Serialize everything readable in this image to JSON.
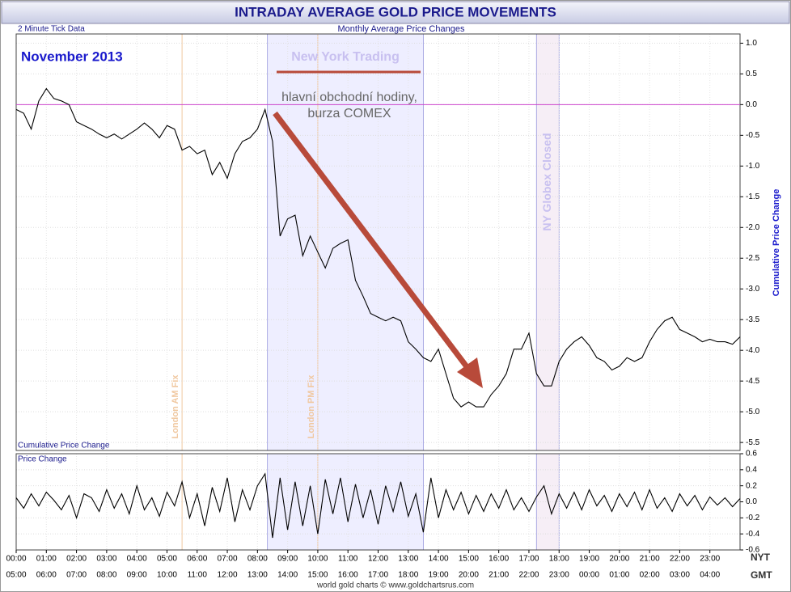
{
  "header": {
    "title": "INTRADAY AVERAGE GOLD PRICE MOVEMENTS",
    "left_note": "2 Minute Tick Data",
    "center_note": "Monthly Average Price Changes",
    "credit": "world gold charts © www.goldchartsrus.com"
  },
  "chart_data": [
    {
      "type": "line",
      "month_label": "November 2013",
      "panel_label": "Cumulative Price Change",
      "y_label": "Cumulative Price Change",
      "color": "#000000",
      "grid": true,
      "reference_line": 0,
      "reference_color": "#cc44cc",
      "annotations": [
        "hlavní obchodní hodiny,",
        "burza COMEX"
      ],
      "regions": [
        {
          "label": "New York Trading",
          "start": 8.33,
          "end": 13.5,
          "color": "#eeeeff"
        },
        {
          "label": "NY Globex Closed",
          "start": 17.25,
          "end": 18,
          "color": "#f6eef6"
        }
      ],
      "vlines": [
        {
          "label": "London AM Fix",
          "x": 5.5,
          "color": "#f0c8a0"
        },
        {
          "label": "London PM Fix",
          "x": 10,
          "color": "#f0c8a0"
        }
      ],
      "xlim": [
        0,
        24
      ],
      "ylim": [
        -5.63,
        1.15
      ],
      "yticks": [
        {
          "value": 1,
          "label": "1.0"
        },
        0.5,
        {
          "value": 0,
          "label": "0.0"
        },
        -0.5,
        {
          "value": -1,
          "label": "-1.0"
        },
        -1.5,
        {
          "value": -2,
          "label": "-2.0"
        },
        -2.5,
        {
          "value": -3,
          "label": "-3.0"
        },
        -3.5,
        {
          "value": -4,
          "label": "-4.0"
        },
        -4.5,
        {
          "value": -5,
          "label": "-5.0"
        },
        -5.5
      ],
      "x": [
        0,
        0.25,
        0.5,
        0.75,
        1,
        1.25,
        1.5,
        1.75,
        2,
        2.25,
        2.5,
        2.75,
        3,
        3.25,
        3.5,
        3.75,
        4,
        4.25,
        4.5,
        4.75,
        5,
        5.25,
        5.5,
        5.75,
        6,
        6.25,
        6.5,
        6.75,
        7,
        7.25,
        7.5,
        7.75,
        8,
        8.25,
        8.5,
        8.75,
        9,
        9.25,
        9.5,
        9.75,
        10,
        10.25,
        10.5,
        10.75,
        11,
        11.25,
        11.5,
        11.75,
        12,
        12.25,
        12.5,
        12.75,
        13,
        13.25,
        13.5,
        13.75,
        14,
        14.25,
        14.5,
        14.75,
        15,
        15.25,
        15.5,
        15.75,
        16,
        16.25,
        16.5,
        16.75,
        17,
        17.25,
        17.5,
        17.75,
        18,
        18.25,
        18.5,
        18.75,
        19,
        19.25,
        19.5,
        19.75,
        20,
        20.25,
        20.5,
        20.75,
        21,
        21.25,
        21.5,
        21.75,
        22,
        22.25,
        22.5,
        22.75,
        23,
        23.25,
        23.5,
        23.75,
        24
      ],
      "values": [
        -0.08,
        -0.14,
        -0.4,
        0.06,
        0.26,
        0.1,
        0.06,
        0,
        -0.28,
        -0.34,
        -0.4,
        -0.48,
        -0.54,
        -0.48,
        -0.56,
        -0.48,
        -0.4,
        -0.3,
        -0.4,
        -0.54,
        -0.34,
        -0.4,
        -0.74,
        -0.68,
        -0.8,
        -0.74,
        -1.14,
        -0.94,
        -1.2,
        -0.8,
        -0.6,
        -0.54,
        -0.4,
        -0.08,
        -0.6,
        -2.14,
        -1.86,
        -1.8,
        -2.46,
        -2.14,
        -2.4,
        -2.66,
        -2.34,
        -2.26,
        -2.2,
        -2.86,
        -3.12,
        -3.4,
        -3.46,
        -3.52,
        -3.46,
        -3.52,
        -3.86,
        -3.98,
        -4.12,
        -4.18,
        -3.98,
        -4.38,
        -4.78,
        -4.92,
        -4.84,
        -4.92,
        -4.92,
        -4.72,
        -4.58,
        -4.38,
        -3.98,
        -3.98,
        -3.72,
        -4.38,
        -4.58,
        -4.58,
        -4.18,
        -3.98,
        -3.86,
        -3.78,
        -3.92,
        -4.12,
        -4.18,
        -4.32,
        -4.26,
        -4.12,
        -4.18,
        -4.12,
        -3.86,
        -3.66,
        -3.52,
        -3.46,
        -3.66,
        -3.72,
        -3.78,
        -3.86,
        -3.82,
        -3.86,
        -3.86,
        -3.9,
        -3.78
      ]
    },
    {
      "type": "line",
      "panel_label": "Price Change",
      "color": "#000000",
      "grid": true,
      "xlim": [
        0,
        24
      ],
      "ylim": [
        -0.6,
        0.6
      ],
      "yticks": [
        0.6,
        0.4,
        0.2,
        {
          "value": 0,
          "label": "0.0"
        },
        -0.2,
        -0.4,
        -0.6
      ],
      "x_label": "NYT",
      "x2_label": "GMT",
      "xticks": [
        {
          "value": 0,
          "label": "00:00"
        },
        {
          "value": 1,
          "label": "01:00"
        },
        {
          "value": 2,
          "label": "02:00"
        },
        {
          "value": 3,
          "label": "03:00"
        },
        {
          "value": 4,
          "label": "04:00"
        },
        {
          "value": 5,
          "label": "05:00"
        },
        {
          "value": 6,
          "label": "06:00"
        },
        {
          "value": 7,
          "label": "07:00"
        },
        {
          "value": 8,
          "label": "08:00"
        },
        {
          "value": 9,
          "label": "09:00"
        },
        {
          "value": 10,
          "label": "10:00"
        },
        {
          "value": 11,
          "label": "11:00"
        },
        {
          "value": 12,
          "label": "12:00"
        },
        {
          "value": 13,
          "label": "13:00"
        },
        {
          "value": 14,
          "label": "14:00"
        },
        {
          "value": 15,
          "label": "15:00"
        },
        {
          "value": 16,
          "label": "16:00"
        },
        {
          "value": 17,
          "label": "17:00"
        },
        {
          "value": 18,
          "label": "18:00"
        },
        {
          "value": 19,
          "label": "19:00"
        },
        {
          "value": 20,
          "label": "20:00"
        },
        {
          "value": 21,
          "label": "21:00"
        },
        {
          "value": 22,
          "label": "22:00"
        },
        {
          "value": 23,
          "label": "23:00"
        }
      ],
      "x2_labels": [
        "05:00",
        "06:00",
        "07:00",
        "08:00",
        "09:00",
        "10:00",
        "11:00",
        "12:00",
        "13:00",
        "14:00",
        "15:00",
        "16:00",
        "17:00",
        "18:00",
        "19:00",
        "20:00",
        "21:00",
        "22:00",
        "23:00",
        "00:00",
        "01:00",
        "02:00",
        "03:00",
        "04:00"
      ],
      "x": [
        0,
        0.25,
        0.5,
        0.75,
        1,
        1.25,
        1.5,
        1.75,
        2,
        2.25,
        2.5,
        2.75,
        3,
        3.25,
        3.5,
        3.75,
        4,
        4.25,
        4.5,
        4.75,
        5,
        5.25,
        5.5,
        5.75,
        6,
        6.25,
        6.5,
        6.75,
        7,
        7.25,
        7.5,
        7.75,
        8,
        8.25,
        8.5,
        8.75,
        9,
        9.25,
        9.5,
        9.75,
        10,
        10.25,
        10.5,
        10.75,
        11,
        11.25,
        11.5,
        11.75,
        12,
        12.25,
        12.5,
        12.75,
        13,
        13.25,
        13.5,
        13.75,
        14,
        14.25,
        14.5,
        14.75,
        15,
        15.25,
        15.5,
        15.75,
        16,
        16.25,
        16.5,
        16.75,
        17,
        17.25,
        17.5,
        17.75,
        18,
        18.25,
        18.5,
        18.75,
        19,
        19.25,
        19.5,
        19.75,
        20,
        20.25,
        20.5,
        20.75,
        21,
        21.25,
        21.5,
        21.75,
        22,
        22.25,
        22.5,
        22.75,
        23,
        23.25,
        23.5,
        23.75,
        24
      ],
      "values": [
        0.05,
        -0.08,
        0.1,
        -0.05,
        0.12,
        0.02,
        -0.1,
        0.08,
        -0.2,
        0.1,
        0.05,
        -0.12,
        0.15,
        -0.08,
        0.1,
        -0.15,
        0.2,
        -0.1,
        0.05,
        -0.18,
        0.12,
        -0.05,
        0.25,
        -0.2,
        0.1,
        -0.3,
        0.18,
        -0.12,
        0.3,
        -0.25,
        0.15,
        -0.1,
        0.2,
        0.35,
        -0.45,
        0.3,
        -0.35,
        0.25,
        -0.3,
        0.2,
        -0.4,
        0.28,
        -0.15,
        0.3,
        -0.25,
        0.22,
        -0.2,
        0.15,
        -0.28,
        0.2,
        -0.12,
        0.25,
        -0.18,
        0.1,
        -0.38,
        0.3,
        -0.2,
        0.15,
        -0.1,
        0.12,
        -0.15,
        0.08,
        -0.12,
        0.1,
        -0.08,
        0.15,
        -0.1,
        0.05,
        -0.12,
        0.06,
        0.2,
        -0.15,
        0.1,
        -0.08,
        0.12,
        -0.1,
        0.15,
        -0.05,
        0.08,
        -0.12,
        0.1,
        -0.06,
        0.12,
        -0.1,
        0.15,
        -0.08,
        0.05,
        -0.12,
        0.1,
        -0.05,
        0.08,
        -0.1,
        0.06,
        -0.04,
        0.05,
        -0.06,
        0.04
      ]
    }
  ]
}
